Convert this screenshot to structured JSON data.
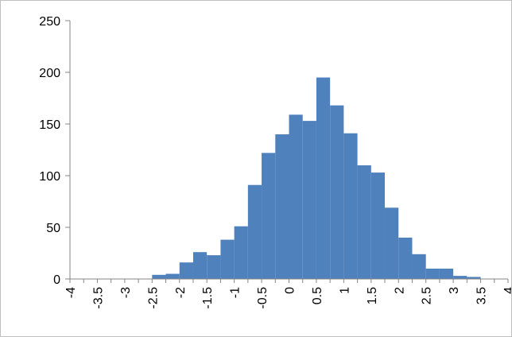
{
  "chart_data": {
    "type": "bar",
    "bar_color": "#4F81BD",
    "grid": false,
    "legend": "none",
    "title": "",
    "xlabel": "",
    "ylabel": "",
    "ylim": [
      0,
      250
    ],
    "y_ticks": [
      0,
      50,
      100,
      150,
      200,
      250
    ],
    "x_ticks": [
      -4,
      -3.5,
      -3,
      -2.5,
      -2,
      -1.5,
      -1,
      -0.5,
      0,
      0.5,
      1,
      1.5,
      2,
      2.5,
      3,
      3.5,
      4
    ],
    "x_tick_labels": [
      "-4",
      "-3.5",
      "-3",
      "-2.5",
      "-2",
      "-1.5",
      "-1",
      "-0.5",
      "0",
      "0.5",
      "1",
      "1.5",
      "2",
      "2.5",
      "3",
      "3.5",
      "4"
    ],
    "y_tick_labels": [
      "0",
      "50",
      "100",
      "150",
      "200",
      "250"
    ],
    "bins_start": -4,
    "bin_width": 0.25,
    "values": [
      0,
      0,
      0,
      0,
      0,
      0,
      4,
      5,
      16,
      26,
      23,
      38,
      51,
      91,
      122,
      140,
      159,
      153,
      195,
      168,
      141,
      110,
      103,
      69,
      40,
      24,
      10,
      10,
      3,
      2,
      0,
      0
    ]
  }
}
